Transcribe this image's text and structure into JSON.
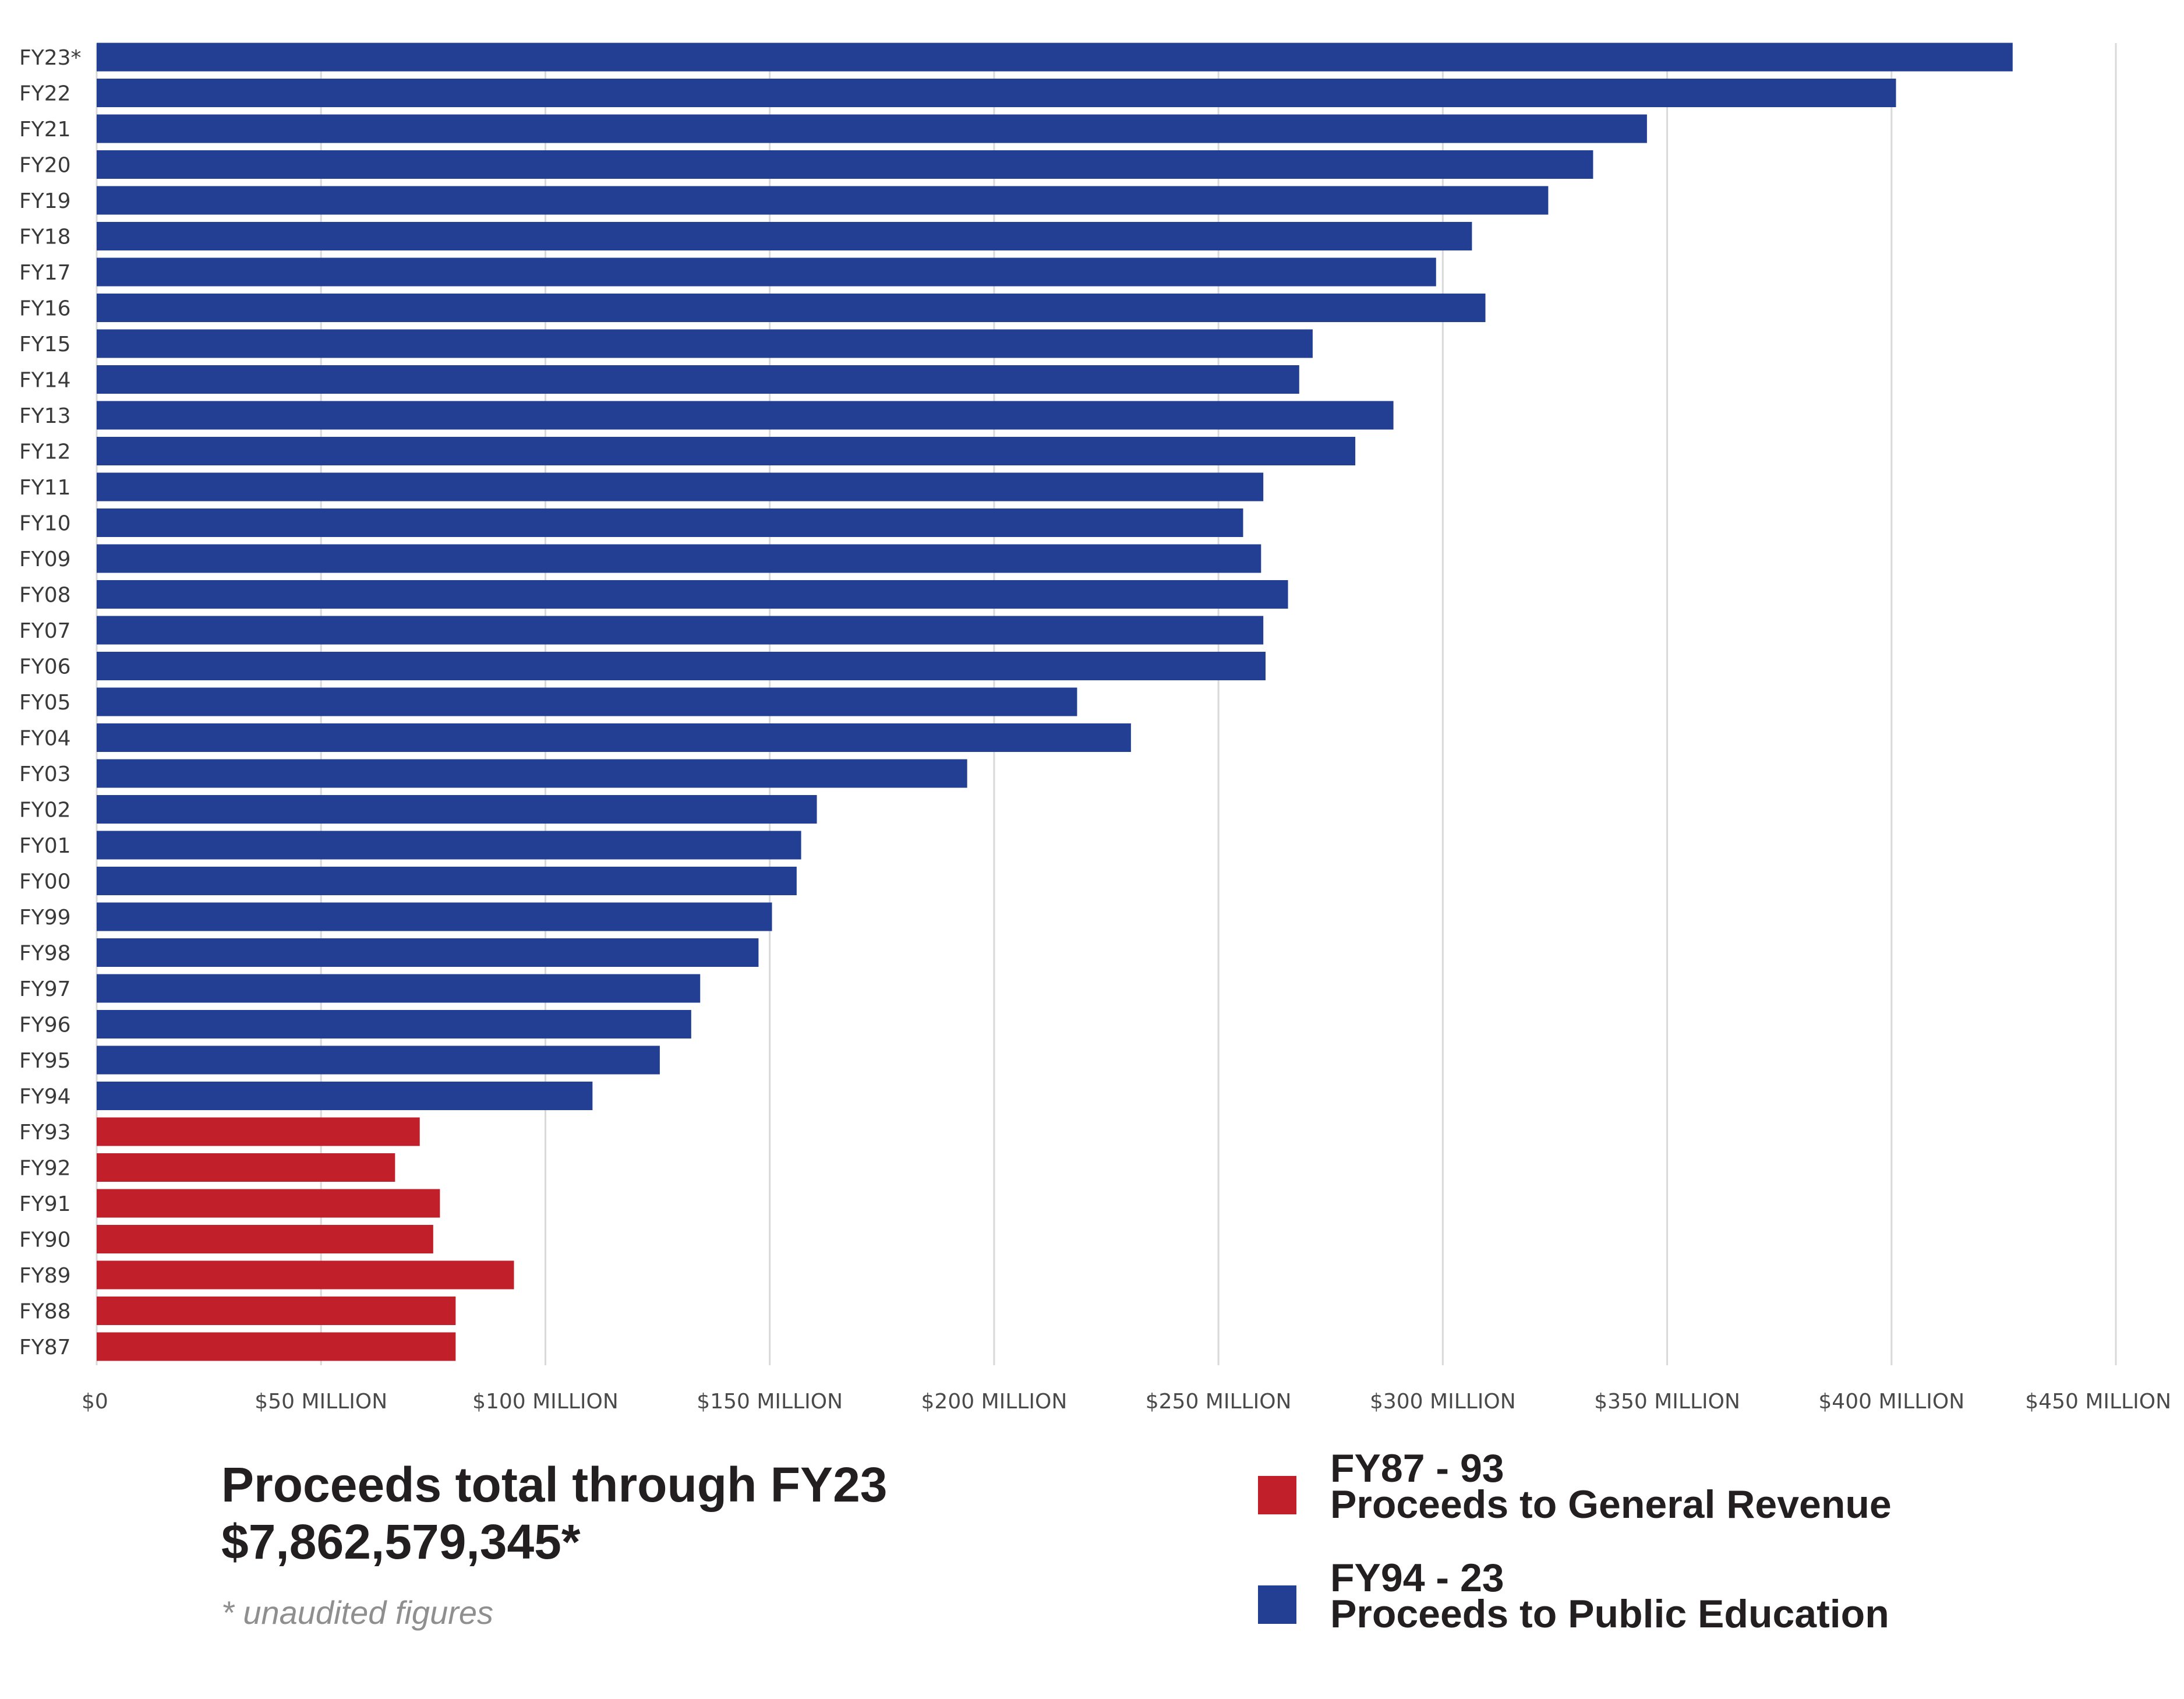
{
  "chart_data": {
    "type": "bar",
    "orientation": "horizontal",
    "title": "",
    "xlabel": "",
    "ylabel": "",
    "xlim": [
      0,
      450000000
    ],
    "grid": true,
    "x_ticks": [
      {
        "value": 0,
        "label": "$0"
      },
      {
        "value": 50000000,
        "label": "$50 MILLION"
      },
      {
        "value": 100000000,
        "label": "$100 MILLION"
      },
      {
        "value": 150000000,
        "label": "$150 MILLION"
      },
      {
        "value": 200000000,
        "label": "$200 MILLION"
      },
      {
        "value": 250000000,
        "label": "$250 MILLION"
      },
      {
        "value": 300000000,
        "label": "$300 MILLION"
      },
      {
        "value": 350000000,
        "label": "$350 MILLION"
      },
      {
        "value": 400000000,
        "label": "$400 MILLION"
      },
      {
        "value": 450000000,
        "label": "$450 MILLION"
      }
    ],
    "categories": [
      "FY23*",
      "FY22",
      "FY21",
      "FY20",
      "FY19",
      "FY18",
      "FY17",
      "FY16",
      "FY15",
      "FY14",
      "FY13",
      "FY12",
      "FY11",
      "FY10",
      "FY09",
      "FY08",
      "FY07",
      "FY06",
      "FY05",
      "FY04",
      "FY03",
      "FY02",
      "FY01",
      "FY00",
      "FY99",
      "FY98",
      "FY97",
      "FY96",
      "FY95",
      "FY94",
      "FY93",
      "FY92",
      "FY91",
      "FY90",
      "FY89",
      "FY88",
      "FY87"
    ],
    "values": [
      427000000,
      401000000,
      345500000,
      333500000,
      323500000,
      306500000,
      298500000,
      309500000,
      271000000,
      268000000,
      289000000,
      280500000,
      260000000,
      255500000,
      259500000,
      265500000,
      260000000,
      260500000,
      218500000,
      230500000,
      194000000,
      160500000,
      157000000,
      156000000,
      150500000,
      147500000,
      134500000,
      132500000,
      125500000,
      110500000,
      72000000,
      66500000,
      76500000,
      75000000,
      93000000,
      80000000,
      80000000
    ],
    "series_by_category": [
      "education",
      "education",
      "education",
      "education",
      "education",
      "education",
      "education",
      "education",
      "education",
      "education",
      "education",
      "education",
      "education",
      "education",
      "education",
      "education",
      "education",
      "education",
      "education",
      "education",
      "education",
      "education",
      "education",
      "education",
      "education",
      "education",
      "education",
      "education",
      "education",
      "education",
      "general",
      "general",
      "general",
      "general",
      "general",
      "general",
      "general"
    ],
    "series": [
      {
        "key": "general",
        "name": "FY87 - 93 Proceeds to General Revenue",
        "color": "#c1202a"
      },
      {
        "key": "education",
        "name": "FY94 - 23 Proceeds to Public Education",
        "color": "#233f94"
      }
    ],
    "legend_placement": "bottom-right"
  },
  "summary": {
    "title": "Proceeds total through FY23",
    "total": "$7,862,579,345*",
    "footnote": "* unaudited figures"
  },
  "legend": {
    "general": {
      "range": "FY87 - 93",
      "label": "Proceeds to General Revenue",
      "color": "#c1202a"
    },
    "education": {
      "range": "FY94 - 23",
      "label": "Proceeds to Public Education",
      "color": "#233f94"
    }
  }
}
